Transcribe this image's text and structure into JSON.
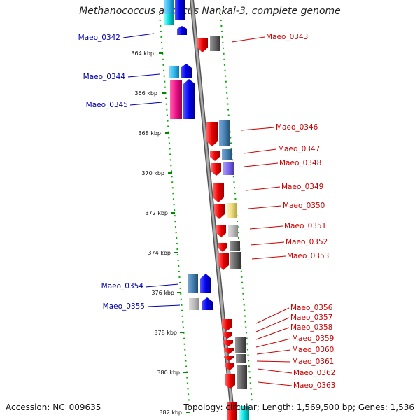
{
  "title": "Methanococcus aeolicus Nankai-3, complete genome",
  "footer": {
    "accession": "Accession: NC_009635",
    "stats": "Topology: circular; Length: 1,569,500 bp; Genes: 1,536"
  },
  "ticks": [
    "364 kbp",
    "366 kbp",
    "368 kbp",
    "370 kbp",
    "372 kbp",
    "374 kbp",
    "376 kbp",
    "378 kbp",
    "380 kbp",
    "382 kbp"
  ],
  "genes": {
    "left": [
      "Maeo_0342",
      "Maeo_0344",
      "Maeo_0345",
      "Maeo_0354",
      "Maeo_0355"
    ],
    "right": [
      "Maeo_0343",
      "Maeo_0346",
      "Maeo_0347",
      "Maeo_0348",
      "Maeo_0349",
      "Maeo_0350",
      "Maeo_0351",
      "Maeo_0352",
      "Maeo_0353",
      "Maeo_0356",
      "Maeo_0357",
      "Maeo_0358",
      "Maeo_0359",
      "Maeo_0360",
      "Maeo_0361",
      "Maeo_0362",
      "Maeo_0363"
    ]
  },
  "colors": {
    "forward_strand": "#0000ee",
    "reverse_strand": "#ee0000",
    "left_label": "#0000aa",
    "right_label": "#cc0000",
    "backbone": "#888888",
    "tick": "#008800"
  }
}
